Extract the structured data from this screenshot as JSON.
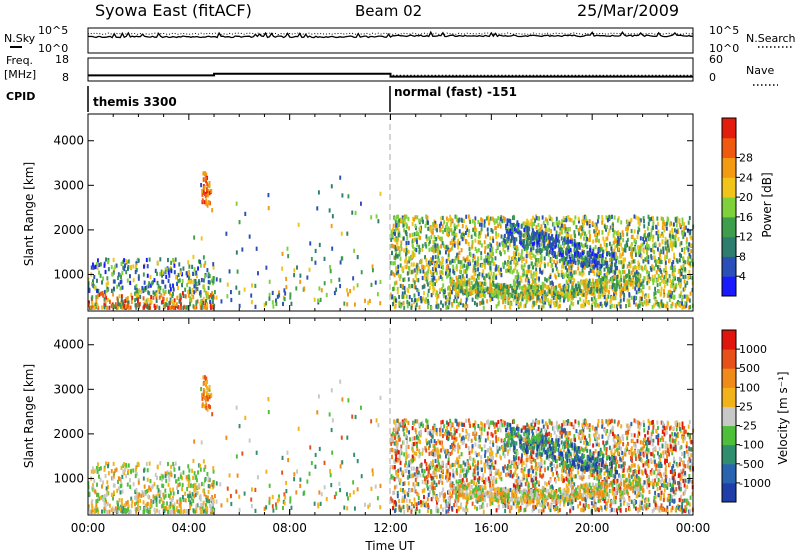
{
  "header": {
    "station": "Syowa East (fitACF)",
    "beam": "Beam 02",
    "date": "25/Mar/2009"
  },
  "top_panels": {
    "nsky": {
      "left_label": "N.Sky",
      "right_label": "N.Search",
      "left_ticks": [
        "10^5",
        "10^0"
      ],
      "right_ticks": [
        "10^5",
        "10^0"
      ]
    },
    "freq": {
      "left_label_1": "Freq.",
      "left_label_2": "[MHz]",
      "right_label": "Nave",
      "left_ticks": [
        "18",
        "8"
      ],
      "right_ticks": [
        "60",
        "0"
      ],
      "freq_steps": [
        [
          0,
          9.8
        ],
        [
          5.0,
          10.6
        ],
        [
          12.0,
          9.2
        ],
        [
          24.0,
          9.2
        ]
      ],
      "nave_steps": [
        [
          0,
          11
        ],
        [
          5.0,
          16
        ],
        [
          12.0,
          11
        ],
        [
          24.0,
          11
        ]
      ]
    },
    "cpid": {
      "label": "CPID",
      "modes": [
        {
          "name": "themis 3300",
          "start": 0,
          "end": 12
        },
        {
          "name": "normal (fast) -151",
          "start": 12,
          "end": 24
        }
      ]
    }
  },
  "chart_data": [
    {
      "type": "heatmap",
      "name": "Power",
      "ylabel": "Slant Range [km]",
      "xlabel": "",
      "xlim": [
        0,
        24
      ],
      "ylim": [
        180,
        4600
      ],
      "yticks": [
        "1000",
        "2000",
        "3000",
        "4000"
      ],
      "colorbar": {
        "label": "Power [dB]",
        "ticks": [
          "4",
          "8",
          "12",
          "16",
          "20",
          "24",
          "28"
        ],
        "colors": [
          "#1a1aff",
          "#2a4fb8",
          "#2e7d6e",
          "#3e9e4c",
          "#7fd13b",
          "#f0c419",
          "#f29a12",
          "#ef5a10",
          "#e21d0e"
        ]
      }
    },
    {
      "type": "heatmap",
      "name": "Velocity",
      "ylabel": "Slant Range [km]",
      "xlabel": "Time UT",
      "xlim": [
        0,
        24
      ],
      "ylim": [
        180,
        4600
      ],
      "yticks": [
        "1000",
        "2000",
        "3000",
        "4000"
      ],
      "xticks": [
        "00:00",
        "04:00",
        "08:00",
        "12:00",
        "16:00",
        "20:00",
        "00:00"
      ],
      "colorbar": {
        "label": "Velocity [m s⁻¹]",
        "ticks": [
          "1000",
          "500",
          "100",
          "25",
          "-25",
          "-100",
          "-500",
          "-1000"
        ],
        "colors": [
          "#1f3ea8",
          "#2a63b0",
          "#2f8e6e",
          "#4fbf3b",
          "#c8c8c8",
          "#f2b21a",
          "#f08a18",
          "#e8501a",
          "#e0160e"
        ]
      }
    }
  ]
}
